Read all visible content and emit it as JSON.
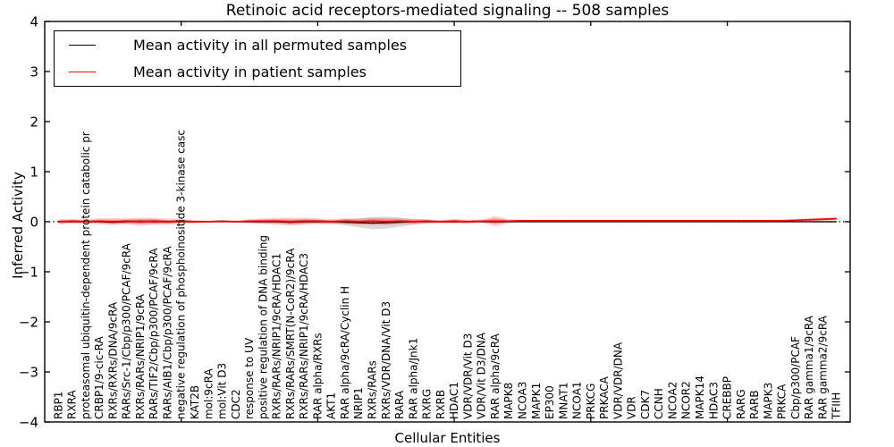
{
  "figure": {
    "title": "Retinoic acid receptors-mediated signaling -- 508 samples",
    "xlabel": "Cellular Entities",
    "ylabel": "Inferred Activity"
  },
  "legend": {
    "items": [
      {
        "label": "Mean activity in all permuted samples",
        "color": "#000000"
      },
      {
        "label": "Mean activity in patient samples",
        "color": "#ff0000"
      }
    ]
  },
  "chart_data": {
    "type": "line",
    "title": "Retinoic acid receptors-mediated signaling -- 508 samples",
    "xlabel": "Cellular Entities",
    "ylabel": "Inferred Activity",
    "ylim": [
      -4,
      4
    ],
    "yticks": [
      4,
      3,
      2,
      1,
      0,
      -1,
      -2,
      -3,
      -4
    ],
    "grid": false,
    "legend_position": "upper left",
    "zero_reference_line": "dotted",
    "colors": {
      "permuted": "#000000",
      "patient": "#ff0000",
      "permuted_band": "#aaaaaa",
      "patient_band": "#ff0000"
    },
    "categories": [
      "RBP1",
      "RXRA",
      "proteasomal ubiquitin-dependent protein catabolic pr",
      "CRBP1/9-cic-RA",
      "RXRs/RXRs/DNA/9cRA",
      "RARs/Src-1/Cbp/p300/PCAF/9cRA",
      "RXRs/RARs/NRIP1/9cRA",
      "RARs/TIF2/Cbp/p300/PCAF/9cRA",
      "RARs/AIB1/Cbp/p300/PCAF/9cRA",
      "negative regulation of phosphoinositide 3-kinase casc",
      "KAT2B",
      "mol:9cRA",
      "mol:Vit D3",
      "CDC2",
      "response to UV",
      "positive regulation of DNA binding",
      "RXRs/RARs/NRIP1/9cRA/HDAC1",
      "RXRs/RARs/SMRT(N-CoR2)/9cRA",
      "RXRs/RARs/NRIP1/9cRA/HDAC3",
      "RAR alpha/RXRs",
      "AKT1",
      "RAR alpha/9cRA/Cyclin H",
      "NRIP1",
      "RXRs/RARs",
      "RXRs/VDR/DNA/Vit D3",
      "RARA",
      "RAR alpha/Jnk1",
      "RXRG",
      "RXRB",
      "HDAC1",
      "VDR/VDR/Vit D3",
      "VDR/Vit D3/DNA",
      "RAR alpha/9cRA",
      "MAPK8",
      "NCOA3",
      "MAPK1",
      "EP300",
      "MNAT1",
      "NCOA1",
      "PRKCG",
      "PRKACA",
      "VDR/VDR/DNA",
      "VDR",
      "CDK7",
      "CCNH",
      "NCOA2",
      "NCOR2",
      "MAPK14",
      "HDAC3",
      "CREBBP",
      "RARG",
      "RARB",
      "MAPK3",
      "PRKCA",
      "Cbp/p300/PCAF",
      "RAR gamma1/9cRA",
      "RAR gamma2/9cRA",
      "TFIIH"
    ],
    "series": [
      {
        "name": "Mean activity in all permuted samples",
        "values": [
          0,
          0,
          0,
          0,
          -0.01,
          0,
          0.01,
          0,
          0,
          0,
          0,
          0,
          0,
          0,
          0,
          0,
          0,
          -0.01,
          0,
          0,
          0,
          -0.01,
          -0.02,
          -0.03,
          -0.02,
          -0.01,
          0,
          0,
          0,
          0,
          0,
          0,
          0,
          0,
          0,
          0,
          0,
          0,
          0,
          0,
          0,
          0,
          0,
          0,
          0,
          0,
          0,
          0,
          0,
          0,
          0,
          0,
          0,
          0,
          0,
          0,
          0,
          0
        ],
        "band_halfwidth": [
          0.02,
          0.02,
          0.02,
          0.02,
          0.03,
          0.03,
          0.04,
          0.04,
          0.03,
          0.02,
          0.02,
          0.01,
          0.01,
          0.01,
          0.02,
          0.03,
          0.03,
          0.04,
          0.04,
          0.03,
          0.03,
          0.06,
          0.09,
          0.12,
          0.12,
          0.09,
          0.06,
          0.04,
          0.02,
          0.02,
          0.01,
          0.01,
          0.02,
          0.01,
          0.01,
          0.01,
          0.01,
          0.01,
          0.01,
          0.01,
          0.01,
          0.01,
          0.01,
          0.01,
          0.01,
          0.01,
          0.01,
          0.01,
          0.01,
          0.01,
          0.01,
          0.01,
          0.01,
          0.01,
          0.01,
          0.01,
          0.02,
          0.02
        ]
      },
      {
        "name": "Mean activity in patient samples",
        "values": [
          0,
          0.01,
          0,
          0.01,
          0,
          0.01,
          0,
          0.01,
          0,
          0.01,
          0,
          0,
          0.01,
          0,
          0.01,
          0.01,
          0.01,
          0,
          0.01,
          0.01,
          0,
          0.01,
          0,
          0.01,
          0,
          0.01,
          0,
          0.01,
          0,
          0.01,
          0,
          0.01,
          0.01,
          0.01,
          0.02,
          0.02,
          0.02,
          0.02,
          0.02,
          0.02,
          0.02,
          0.02,
          0.02,
          0.02,
          0.02,
          0.02,
          0.02,
          0.02,
          0.02,
          0.02,
          0.02,
          0.02,
          0.02,
          0.02,
          0.03,
          0.04,
          0.05,
          0.06
        ],
        "band_halfwidth": [
          0.05,
          0.05,
          0.04,
          0.06,
          0.07,
          0.06,
          0.08,
          0.07,
          0.06,
          0.05,
          0.03,
          0.02,
          0.02,
          0.02,
          0.04,
          0.06,
          0.07,
          0.08,
          0.07,
          0.06,
          0.05,
          0.06,
          0.06,
          0.07,
          0.07,
          0.06,
          0.05,
          0.04,
          0.03,
          0.05,
          0.04,
          0.03,
          0.1,
          0.04,
          0.02,
          0.015,
          0.015,
          0.015,
          0.015,
          0.015,
          0.015,
          0.015,
          0.015,
          0.015,
          0.015,
          0.015,
          0.015,
          0.015,
          0.015,
          0.015,
          0.015,
          0.015,
          0.015,
          0.02,
          0.02,
          0.03,
          0.03,
          0.03
        ]
      }
    ]
  }
}
